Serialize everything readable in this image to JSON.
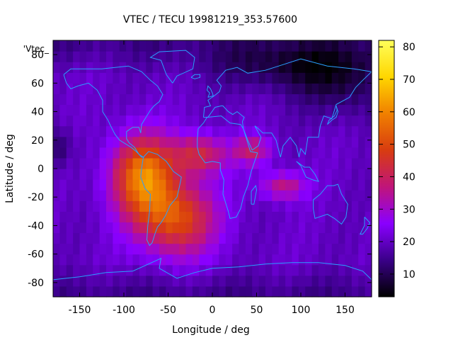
{
  "chart_data": {
    "type": "heatmap",
    "title": "VTEC / TECU 19981219_353.57600",
    "xlabel": "Longitude / deg",
    "ylabel": "Latitude / deg",
    "series_key": "'Vtec_",
    "xlim": [
      -180,
      180
    ],
    "ylim": [
      -90,
      90
    ],
    "x_ticks": [
      -150,
      -100,
      -50,
      0,
      50,
      100,
      150
    ],
    "y_ticks": [
      80,
      60,
      40,
      20,
      0,
      -20,
      -40,
      -60,
      -80
    ],
    "colorbar": {
      "range": [
        3,
        82
      ],
      "ticks": [
        10,
        20,
        30,
        40,
        50,
        60,
        70,
        80
      ],
      "palette": [
        "#000000",
        "#3a0088",
        "#8a00ff",
        "#c0157a",
        "#d83c10",
        "#f08000",
        "#ffd600",
        "#ffff5a"
      ]
    },
    "background_tecu": 20,
    "enhancements": [
      {
        "name": "south-america-anomaly",
        "lon": -78,
        "lat": -5,
        "sigma_lon": 25,
        "sigma_lat": 20,
        "tecu": 38
      },
      {
        "name": "south-atlantic-crest",
        "lon": -40,
        "lat": -35,
        "sigma_lon": 30,
        "sigma_lat": 18,
        "tecu": 30
      },
      {
        "name": "atlantic-band",
        "lon": -15,
        "lat": 10,
        "sigma_lon": 22,
        "sigma_lat": 10,
        "tecu": 22
      },
      {
        "name": "east-africa",
        "lon": 45,
        "lat": 13,
        "sigma_lon": 15,
        "sigma_lat": 7,
        "tecu": 18
      },
      {
        "name": "indian-ocean",
        "lon": 80,
        "lat": -12,
        "sigma_lon": 18,
        "sigma_lat": 7,
        "tecu": 17
      }
    ],
    "depletions": [
      {
        "name": "arctic-asia",
        "lon": 100,
        "lat": 72,
        "sigma_lon": 70,
        "sigma_lat": 12,
        "tecu": -12
      },
      {
        "name": "north-pacific",
        "lon": 150,
        "lat": 55,
        "sigma_lon": 40,
        "sigma_lat": 15,
        "tecu": -8
      },
      {
        "name": "west-edge",
        "lon": -180,
        "lat": 15,
        "sigma_lon": 15,
        "sigma_lat": 10,
        "tecu": -10
      }
    ]
  },
  "colors": {
    "coastline": "#2aa0ff",
    "frame": "#000000"
  }
}
